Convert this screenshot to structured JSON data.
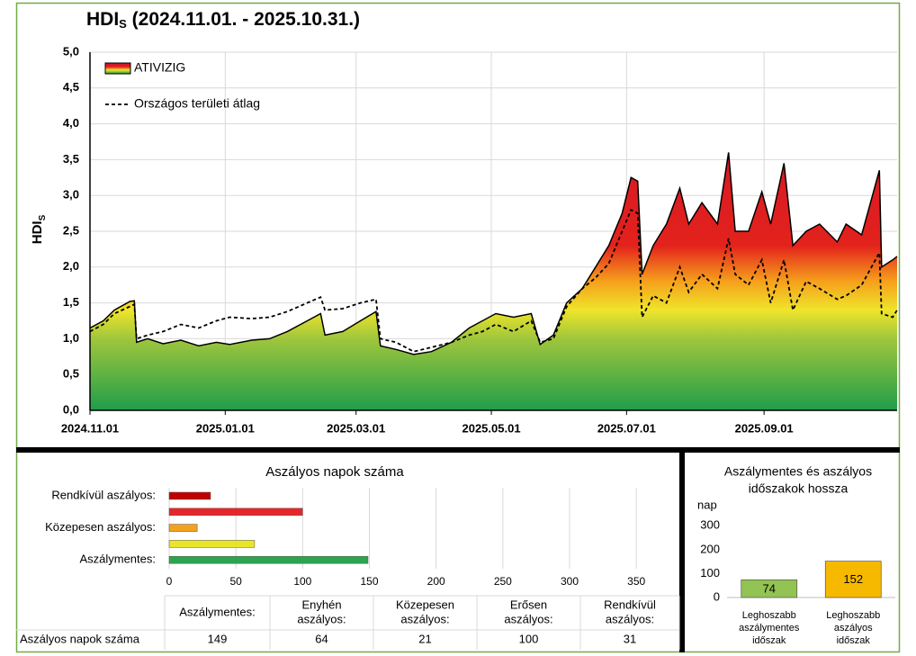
{
  "chart_data": [
    {
      "type": "area",
      "title": "HDI",
      "title_sub": "S",
      "title_rest": " (2024.11.01. - 2025.10.31.)",
      "ylabel": "HDI",
      "ylabel_sub": "S",
      "xlim": [
        "2024.11.01",
        "2025.10.31"
      ],
      "xticks": [
        "2024.11.01",
        "2025.01.01",
        "2025.03.01",
        "2025.05.01",
        "2025.07.01",
        "2025.09.01"
      ],
      "ylim": [
        0,
        5
      ],
      "yticks": [
        {
          "value": 0,
          "label": "0,0"
        },
        {
          "value": 0.5,
          "label": "0,5"
        },
        {
          "value": 1,
          "label": "1,0"
        },
        {
          "value": 1.5,
          "label": "1,5"
        },
        {
          "value": 2,
          "label": "2,0"
        },
        {
          "value": 2.5,
          "label": "2,5"
        },
        {
          "value": 3,
          "label": "3,0"
        },
        {
          "value": 3.5,
          "label": "3,5"
        },
        {
          "value": 4,
          "label": "4,0"
        },
        {
          "value": 4.5,
          "label": "4,5"
        },
        {
          "value": 5,
          "label": "5,0"
        }
      ],
      "grid": true,
      "legend": "upper left",
      "x": [
        "2024.11.01",
        "2024.11.07",
        "2024.11.12",
        "2024.11.19",
        "2024.11.21",
        "2024.11.22",
        "2024.11.27",
        "2024.12.04",
        "2024.12.12",
        "2024.12.20",
        "2024.12.28",
        "2025.01.03",
        "2025.01.13",
        "2025.01.21",
        "2025.01.29",
        "2025.02.07",
        "2025.02.13",
        "2025.02.15",
        "2025.02.23",
        "2025.03.03",
        "2025.03.10",
        "2025.03.12",
        "2025.03.19",
        "2025.03.27",
        "2025.04.04",
        "2025.04.13",
        "2025.04.21",
        "2025.04.27",
        "2025.05.03",
        "2025.05.11",
        "2025.05.19",
        "2025.05.23",
        "2025.05.29",
        "2025.06.04",
        "2025.06.11",
        "2025.06.17",
        "2025.06.23",
        "2025.06.29",
        "2025.07.03",
        "2025.07.06",
        "2025.07.08",
        "2025.07.13",
        "2025.07.19",
        "2025.07.25",
        "2025.07.29",
        "2025.08.04",
        "2025.08.11",
        "2025.08.16",
        "2025.08.19",
        "2025.08.25",
        "2025.08.31",
        "2025.09.04",
        "2025.09.10",
        "2025.09.14",
        "2025.09.20",
        "2025.09.26",
        "2025.10.04",
        "2025.10.08",
        "2025.10.15",
        "2025.10.23",
        "2025.10.24",
        "2025.10.29",
        "2025.10.31"
      ],
      "series": [
        {
          "name": "ATIVIZIG",
          "color": "#000000",
          "fill": "gradient",
          "values": [
            1.15,
            1.25,
            1.4,
            1.52,
            1.53,
            0.95,
            1.0,
            0.93,
            0.98,
            0.9,
            0.95,
            0.92,
            0.98,
            1.0,
            1.1,
            1.25,
            1.35,
            1.05,
            1.1,
            1.25,
            1.38,
            0.9,
            0.85,
            0.78,
            0.82,
            0.95,
            1.15,
            1.25,
            1.35,
            1.3,
            1.35,
            0.92,
            1.05,
            1.5,
            1.7,
            2.0,
            2.3,
            2.75,
            3.25,
            3.2,
            1.9,
            2.3,
            2.6,
            3.1,
            2.6,
            2.9,
            2.6,
            3.6,
            2.5,
            2.5,
            3.05,
            2.6,
            3.45,
            2.3,
            2.5,
            2.6,
            2.35,
            2.6,
            2.45,
            3.35,
            2.0,
            2.1,
            2.15
          ]
        },
        {
          "name": "Országos területi átlag",
          "color": "#000000",
          "dash": true,
          "values": [
            1.1,
            1.2,
            1.35,
            1.45,
            1.48,
            1.0,
            1.05,
            1.1,
            1.2,
            1.15,
            1.25,
            1.3,
            1.28,
            1.3,
            1.38,
            1.5,
            1.58,
            1.4,
            1.42,
            1.5,
            1.55,
            1.0,
            0.95,
            0.82,
            0.88,
            0.95,
            1.05,
            1.1,
            1.2,
            1.1,
            1.25,
            0.95,
            1.0,
            1.45,
            1.7,
            1.85,
            2.05,
            2.5,
            2.8,
            2.75,
            1.3,
            1.6,
            1.5,
            2.0,
            1.65,
            1.9,
            1.7,
            2.4,
            1.9,
            1.75,
            2.1,
            1.5,
            2.1,
            1.4,
            1.8,
            1.7,
            1.55,
            1.6,
            1.75,
            2.2,
            1.35,
            1.3,
            1.4
          ]
        }
      ]
    },
    {
      "type": "hbar",
      "title": "Aszályos napok száma",
      "categories": [
        "Rendkívül aszályos:",
        null,
        "Közepesen aszályos:",
        null,
        "Aszálymentes:"
      ],
      "values": [
        31,
        100,
        21,
        64,
        149
      ],
      "colors": [
        "#c00000",
        "#e8262a",
        "#f4a21c",
        "#e9e42a",
        "#2ea44f"
      ],
      "xlim": [
        0,
        360
      ],
      "xticks": [
        0,
        50,
        100,
        150,
        200,
        250,
        300,
        350
      ],
      "grid": true
    },
    {
      "type": "bar",
      "title": [
        "Aszálymentes és aszályos",
        "időszakok hossza"
      ],
      "ylabel": "nap",
      "categories": [
        [
          "Leghoszabb",
          "aszálymentes",
          "időszak"
        ],
        [
          "Leghoszabb",
          "aszályos",
          "időszak"
        ]
      ],
      "values": [
        74,
        152
      ],
      "colors": [
        "#92c353",
        "#f7b900"
      ],
      "ylim": [
        0,
        350
      ],
      "yticks": [
        0,
        100,
        200,
        300
      ],
      "grid": false
    }
  ],
  "table": {
    "header": [
      [
        "Aszálymentes:"
      ],
      [
        "Enyhén",
        "aszályos:"
      ],
      [
        "Közepesen",
        "aszályos:"
      ],
      [
        "Erősen",
        "aszályos:"
      ],
      [
        "Rendkívül",
        "aszályos:"
      ]
    ],
    "rows": [
      [
        "Aszályos napok száma",
        149,
        64,
        21,
        100,
        31
      ]
    ]
  }
}
